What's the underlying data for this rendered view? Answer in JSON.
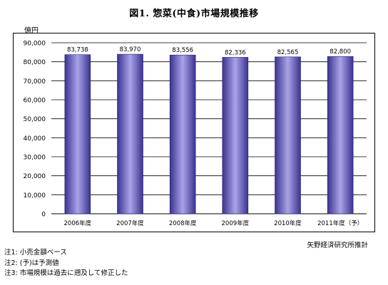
{
  "header": {
    "title": "図1. 惣菜(中食)市場規模推移",
    "unit": "億円"
  },
  "chart_data": {
    "type": "bar",
    "categories": [
      "2006年度",
      "2007年度",
      "2008年度",
      "2009年度",
      "2010年度",
      "2011年度（予）"
    ],
    "values": [
      83738,
      83970,
      83556,
      82336,
      82565,
      82800
    ],
    "value_labels": [
      "83,738",
      "83,970",
      "83,556",
      "82,336",
      "82,565",
      "82,800"
    ],
    "ylabel": "億円",
    "ylim": [
      0,
      90000
    ],
    "yticks": [
      0,
      10000,
      20000,
      30000,
      40000,
      50000,
      60000,
      70000,
      80000,
      90000
    ],
    "ytick_labels": [
      "0",
      "10,000",
      "20,000",
      "30,000",
      "40,000",
      "50,000",
      "60,000",
      "70,000",
      "80,000",
      "90,000"
    ],
    "grid": true,
    "bar_color_dark": "#3a3390",
    "bar_color_light": "#a9a4e8"
  },
  "footer": {
    "source": "矢野経済研究所推計",
    "notes": [
      "注1: 小売金額ベース",
      "注2: (予)は予測値",
      "注3: 市場規模は過去に遡及して修正した"
    ]
  }
}
